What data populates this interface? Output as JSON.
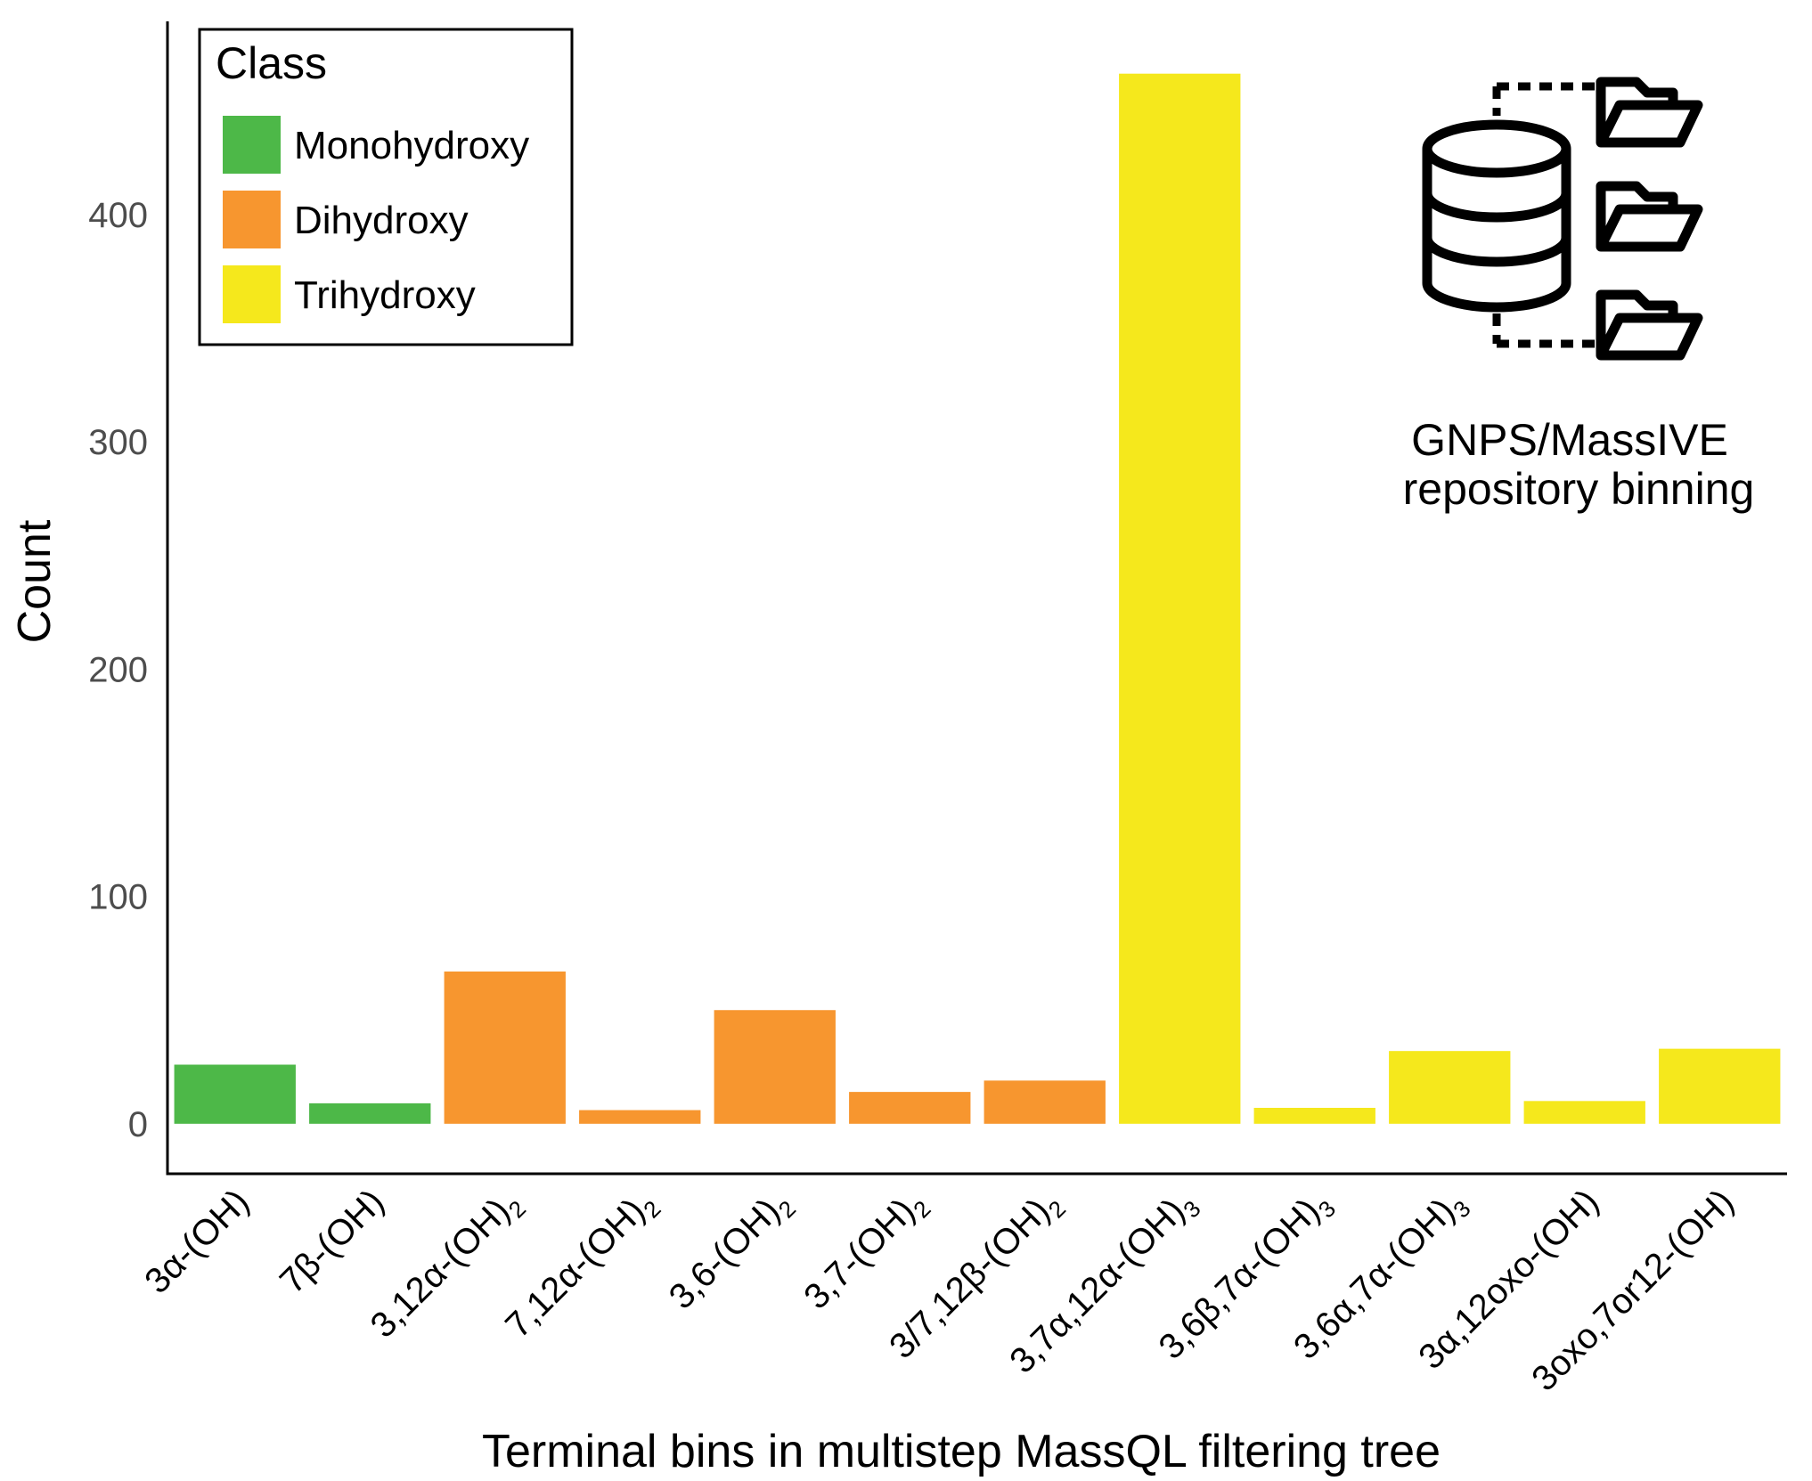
{
  "chart_data": {
    "type": "bar",
    "categories": [
      {
        "base": "3α-(OH)",
        "sub": ""
      },
      {
        "base": "7β-(OH)",
        "sub": ""
      },
      {
        "base": "3,12α-(OH)",
        "sub": "2"
      },
      {
        "base": "7,12α-(OH)",
        "sub": "2"
      },
      {
        "base": "3,6-(OH)",
        "sub": "2"
      },
      {
        "base": "3,7-(OH)",
        "sub": "2"
      },
      {
        "base": "3/7,12β-(OH)",
        "sub": "2"
      },
      {
        "base": "3,7α,12α-(OH)",
        "sub": "3"
      },
      {
        "base": "3,6β,7α-(OH)",
        "sub": "3"
      },
      {
        "base": "3,6α,7α-(OH)",
        "sub": "3"
      },
      {
        "base": "3α,12oxo-(OH)",
        "sub": ""
      },
      {
        "base": "3oxo,7or12-(OH)",
        "sub": ""
      }
    ],
    "values": [
      26,
      9,
      67,
      6,
      50,
      14,
      19,
      462,
      7,
      32,
      10,
      33
    ],
    "classes": [
      "Monohydroxy",
      "Monohydroxy",
      "Dihydroxy",
      "Dihydroxy",
      "Dihydroxy",
      "Dihydroxy",
      "Dihydroxy",
      "Trihydroxy",
      "Trihydroxy",
      "Trihydroxy",
      "Trihydroxy",
      "Trihydroxy"
    ],
    "ylim": [
      -22,
      485
    ],
    "yticks": [
      0,
      100,
      200,
      300,
      400
    ],
    "xlabel": "Terminal bins in multistep MassQL filtering tree",
    "ylabel": "Count",
    "grid": false,
    "legend": {
      "title": "Class",
      "placement": "top-left",
      "entries": [
        {
          "label": "Monohydroxy",
          "color": "#4db848"
        },
        {
          "label": "Dihydroxy",
          "color": "#f7962f"
        },
        {
          "label": "Trihydroxy",
          "color": "#f5e81c"
        }
      ]
    }
  },
  "annotation": {
    "icon": "database-folders-icon",
    "line1": "GNPS/MassIVE",
    "line2": "repository binning"
  }
}
